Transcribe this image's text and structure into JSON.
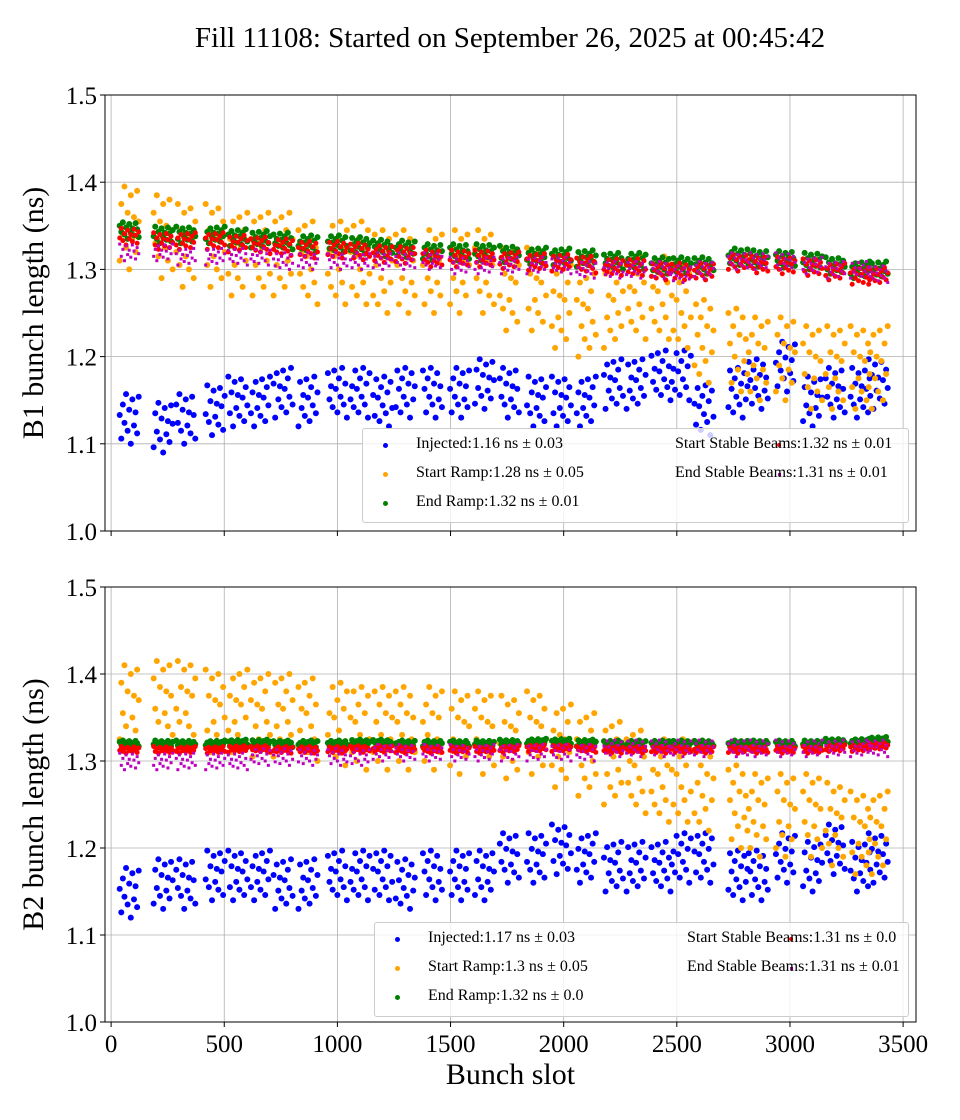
{
  "title": "Fill 11108: Started on September 26, 2025 at 00:45:42",
  "colors": {
    "Injected": "#0000ff",
    "Start Ramp": "#ffa500",
    "End Ramp": "#008000",
    "Start Stable Beams": "#ff0000",
    "End Stable Beams": "#bf00bf"
  },
  "chart_data": [
    {
      "type": "scatter",
      "ylabel": "B1 bunch length (ns)",
      "xlabel": "",
      "xlim": [
        -27,
        3557
      ],
      "ylim": [
        1.0,
        1.5
      ],
      "xticks": [
        0,
        500,
        1000,
        1500,
        2000,
        2500,
        3000,
        3500
      ],
      "xtick_labels_shown": false,
      "yticks": [
        "1.0",
        "1.1",
        "1.2",
        "1.3",
        "1.4",
        "1.5"
      ],
      "grid": true,
      "legend_placement": "lower-right",
      "x": [
        80,
        230,
        330,
        460,
        560,
        660,
        760,
        870,
        1000,
        1100,
        1200,
        1300,
        1420,
        1540,
        1650,
        1760,
        1880,
        1990,
        2100,
        2220,
        2320,
        2430,
        2520,
        2620,
        2770,
        2860,
        2980,
        3100,
        3200,
        3310,
        3390
      ],
      "series": [
        {
          "name": "Injected",
          "legend": "Injected:1.16 ns ± 0.03",
          "spread": 0.03,
          "values": [
            1.13,
            1.12,
            1.13,
            1.14,
            1.15,
            1.15,
            1.16,
            1.15,
            1.16,
            1.16,
            1.15,
            1.16,
            1.16,
            1.16,
            1.17,
            1.16,
            1.15,
            1.15,
            1.15,
            1.17,
            1.17,
            1.18,
            1.18,
            1.14,
            1.16,
            1.17,
            1.19,
            1.15,
            1.16,
            1.16,
            1.17
          ]
        },
        {
          "name": "Start Ramp",
          "legend": "Start Ramp:1.28 ns ± 0.05",
          "spread": 0.05,
          "values": [
            1.35,
            1.34,
            1.33,
            1.33,
            1.32,
            1.32,
            1.32,
            1.31,
            1.31,
            1.31,
            1.3,
            1.3,
            1.3,
            1.3,
            1.3,
            1.28,
            1.28,
            1.26,
            1.25,
            1.26,
            1.27,
            1.27,
            1.26,
            1.22,
            1.21,
            1.2,
            1.2,
            1.19,
            1.19,
            1.19,
            1.19
          ]
        },
        {
          "name": "End Ramp",
          "legend": "End Ramp:1.32 ns ± 0.01",
          "spread": 0.01,
          "values": [
            1.345,
            1.34,
            1.34,
            1.34,
            1.337,
            1.335,
            1.333,
            1.33,
            1.33,
            1.328,
            1.325,
            1.324,
            1.32,
            1.32,
            1.32,
            1.318,
            1.316,
            1.315,
            1.313,
            1.31,
            1.31,
            1.305,
            1.305,
            1.305,
            1.315,
            1.313,
            1.312,
            1.31,
            1.305,
            1.3,
            1.3
          ]
        },
        {
          "name": "Start Stable Beams",
          "legend": "Start Stable Beams:1.32 ns ± 0.01",
          "spread": 0.01,
          "values": [
            1.338,
            1.333,
            1.333,
            1.333,
            1.33,
            1.328,
            1.326,
            1.323,
            1.323,
            1.321,
            1.318,
            1.317,
            1.313,
            1.313,
            1.313,
            1.311,
            1.309,
            1.308,
            1.306,
            1.303,
            1.303,
            1.298,
            1.298,
            1.298,
            1.308,
            1.306,
            1.305,
            1.303,
            1.298,
            1.293,
            1.293
          ]
        },
        {
          "name": "End Stable Beams",
          "legend": "End Stable Beams:1.31 ns ± 0.01",
          "spread": 0.01,
          "values": [
            1.32,
            1.32,
            1.315,
            1.315,
            1.315,
            1.315,
            1.31,
            1.31,
            1.31,
            1.31,
            1.31,
            1.31,
            1.31,
            1.305,
            1.305,
            1.305,
            1.305,
            1.305,
            1.3,
            1.3,
            1.3,
            1.3,
            1.295,
            1.3,
            1.31,
            1.31,
            1.31,
            1.305,
            1.3,
            1.3,
            1.295
          ]
        }
      ]
    },
    {
      "type": "scatter",
      "ylabel": "B2 bunch length (ns)",
      "xlabel": "Bunch slot",
      "xlim": [
        -27,
        3557
      ],
      "ylim": [
        1.0,
        1.5
      ],
      "xticks": [
        0,
        500,
        1000,
        1500,
        2000,
        2500,
        3000,
        3500
      ],
      "xtick_labels_shown": true,
      "yticks": [
        "1.0",
        "1.1",
        "1.2",
        "1.3",
        "1.4",
        "1.5"
      ],
      "grid": true,
      "legend_placement": "lower-right",
      "x": [
        80,
        230,
        330,
        460,
        560,
        660,
        760,
        870,
        1000,
        1100,
        1200,
        1300,
        1420,
        1540,
        1650,
        1760,
        1880,
        1990,
        2100,
        2220,
        2320,
        2430,
        2520,
        2620,
        2770,
        2860,
        2980,
        3100,
        3200,
        3310,
        3390
      ],
      "series": [
        {
          "name": "Injected",
          "legend": "Injected:1.17 ns ± 0.03",
          "spread": 0.03,
          "values": [
            1.15,
            1.16,
            1.16,
            1.17,
            1.17,
            1.17,
            1.16,
            1.16,
            1.17,
            1.17,
            1.17,
            1.16,
            1.17,
            1.17,
            1.17,
            1.19,
            1.19,
            1.2,
            1.19,
            1.18,
            1.18,
            1.18,
            1.19,
            1.19,
            1.17,
            1.17,
            1.19,
            1.18,
            1.2,
            1.18,
            1.19
          ]
        },
        {
          "name": "Start Ramp",
          "legend": "Start Ramp:1.3 ns ± 0.05",
          "spread": 0.05,
          "values": [
            1.365,
            1.37,
            1.37,
            1.36,
            1.36,
            1.355,
            1.355,
            1.35,
            1.345,
            1.34,
            1.34,
            1.34,
            1.34,
            1.335,
            1.335,
            1.33,
            1.335,
            1.32,
            1.31,
            1.3,
            1.29,
            1.28,
            1.28,
            1.27,
            1.25,
            1.24,
            1.24,
            1.24,
            1.23,
            1.22,
            1.22
          ]
        },
        {
          "name": "End Ramp",
          "legend": "End Ramp:1.32 ns ± 0.0",
          "spread": 0.004,
          "values": [
            1.32,
            1.32,
            1.32,
            1.32,
            1.321,
            1.321,
            1.32,
            1.32,
            1.32,
            1.321,
            1.321,
            1.32,
            1.32,
            1.32,
            1.32,
            1.321,
            1.322,
            1.322,
            1.321,
            1.32,
            1.32,
            1.32,
            1.32,
            1.32,
            1.32,
            1.32,
            1.32,
            1.32,
            1.322,
            1.322,
            1.324
          ]
        },
        {
          "name": "Start Stable Beams",
          "legend": "Start Stable Beams:1.31 ns ± 0.0",
          "spread": 0.004,
          "values": [
            1.313,
            1.313,
            1.313,
            1.313,
            1.314,
            1.314,
            1.313,
            1.313,
            1.313,
            1.314,
            1.314,
            1.313,
            1.313,
            1.313,
            1.313,
            1.314,
            1.315,
            1.315,
            1.314,
            1.313,
            1.313,
            1.313,
            1.313,
            1.313,
            1.313,
            1.313,
            1.313,
            1.313,
            1.315,
            1.315,
            1.317
          ]
        },
        {
          "name": "End Stable Beams",
          "legend": "End Stable Beams:1.31 ns ± 0.01",
          "spread": 0.01,
          "values": [
            1.3,
            1.3,
            1.3,
            1.3,
            1.3,
            1.305,
            1.305,
            1.305,
            1.305,
            1.305,
            1.31,
            1.31,
            1.31,
            1.31,
            1.31,
            1.31,
            1.31,
            1.31,
            1.31,
            1.315,
            1.315,
            1.315,
            1.315,
            1.315,
            1.315,
            1.315,
            1.315,
            1.315,
            1.315,
            1.315,
            1.315
          ]
        }
      ]
    }
  ]
}
